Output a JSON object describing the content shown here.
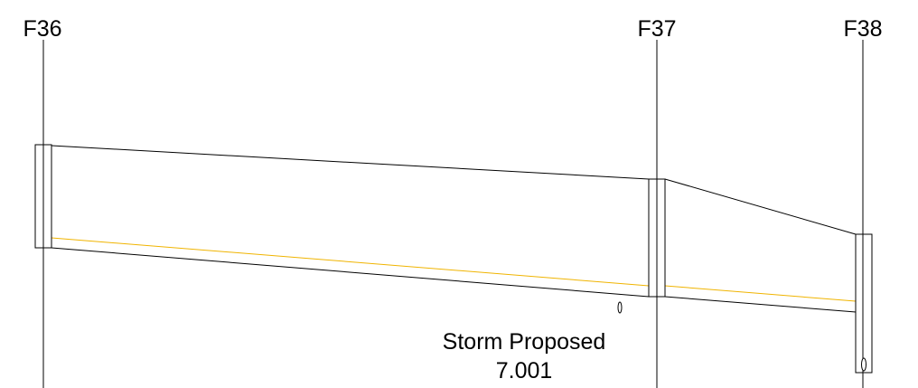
{
  "diagram": {
    "structures": [
      {
        "id": "F36",
        "label": "F36"
      },
      {
        "id": "F37",
        "label": "F37"
      },
      {
        "id": "F38",
        "label": "F38"
      }
    ],
    "pipe": {
      "label_line1": "Storm Proposed",
      "label_line2": "7.001"
    },
    "colors": {
      "lines": "#000000",
      "water_surface": "#f0b400",
      "background": "#ffffff"
    }
  }
}
